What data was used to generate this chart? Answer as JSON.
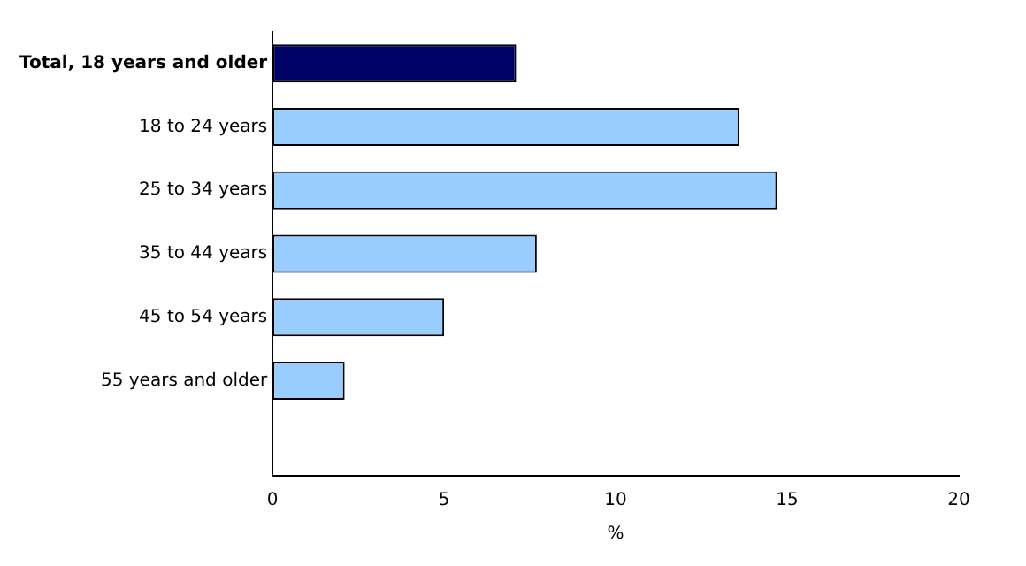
{
  "chart_data": {
    "type": "bar",
    "orientation": "horizontal",
    "xlabel": "%",
    "categories": [
      "Total, 18 years and older",
      "18 to 24 years",
      "25 to 34 years",
      "35 to 44 years",
      "45 to 54 years",
      "55 years and older"
    ],
    "values": [
      7.1,
      13.6,
      14.7,
      7.7,
      5.0,
      2.1
    ],
    "colors": [
      "#000066",
      "#99ccff",
      "#99ccff",
      "#99ccff",
      "#99ccff",
      "#99ccff"
    ],
    "xlim": [
      0,
      20
    ],
    "xticks": [
      0,
      5,
      10,
      15,
      20
    ],
    "grid": false,
    "legend": false
  }
}
